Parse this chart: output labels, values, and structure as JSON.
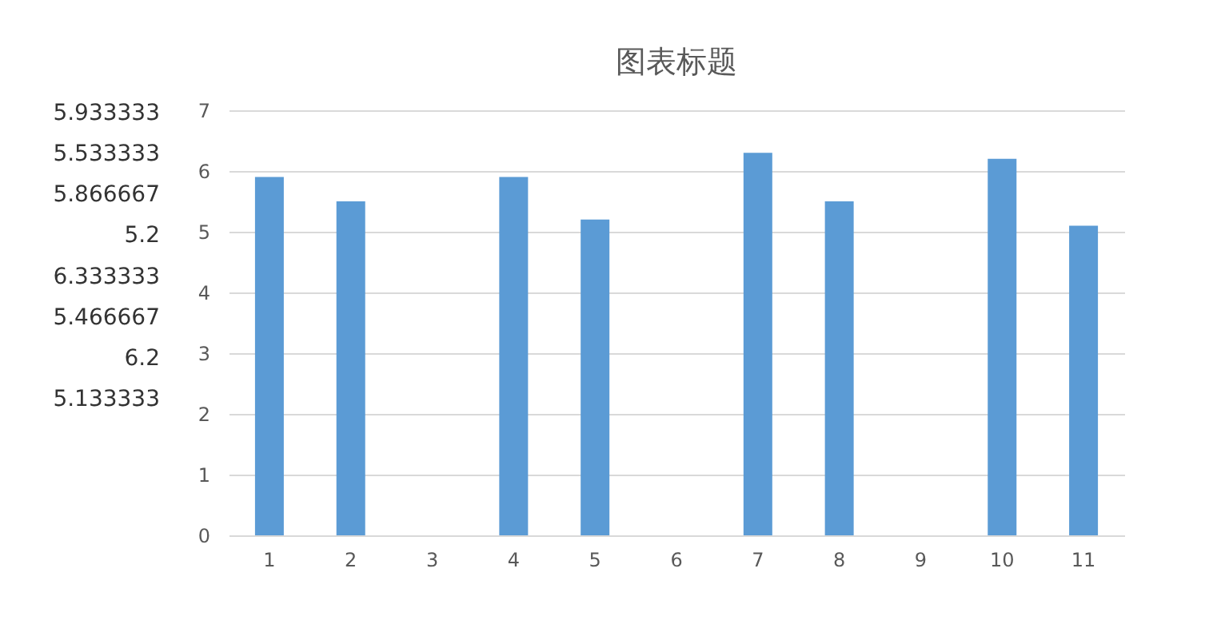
{
  "chart_data": [
    {
      "type": "other",
      "annotations": [
        "5.933333",
        "5.533333",
        "5.866667",
        "5.2",
        "6.333333",
        "5.466667",
        "6.2",
        "5.133333"
      ]
    },
    {
      "type": "bar",
      "title": "图表标题",
      "categories": [
        "1",
        "2",
        "3",
        "4",
        "5",
        "6",
        "7",
        "8",
        "9",
        "10",
        "11"
      ],
      "values": [
        5.9,
        5.5,
        null,
        5.9,
        5.2,
        null,
        6.3,
        5.5,
        null,
        6.2,
        5.1
      ],
      "color": "#5b9bd5",
      "ylim": [
        0,
        7
      ],
      "yticks": [
        0,
        1,
        2,
        3,
        4,
        5,
        6,
        7
      ],
      "grid": "y"
    }
  ]
}
